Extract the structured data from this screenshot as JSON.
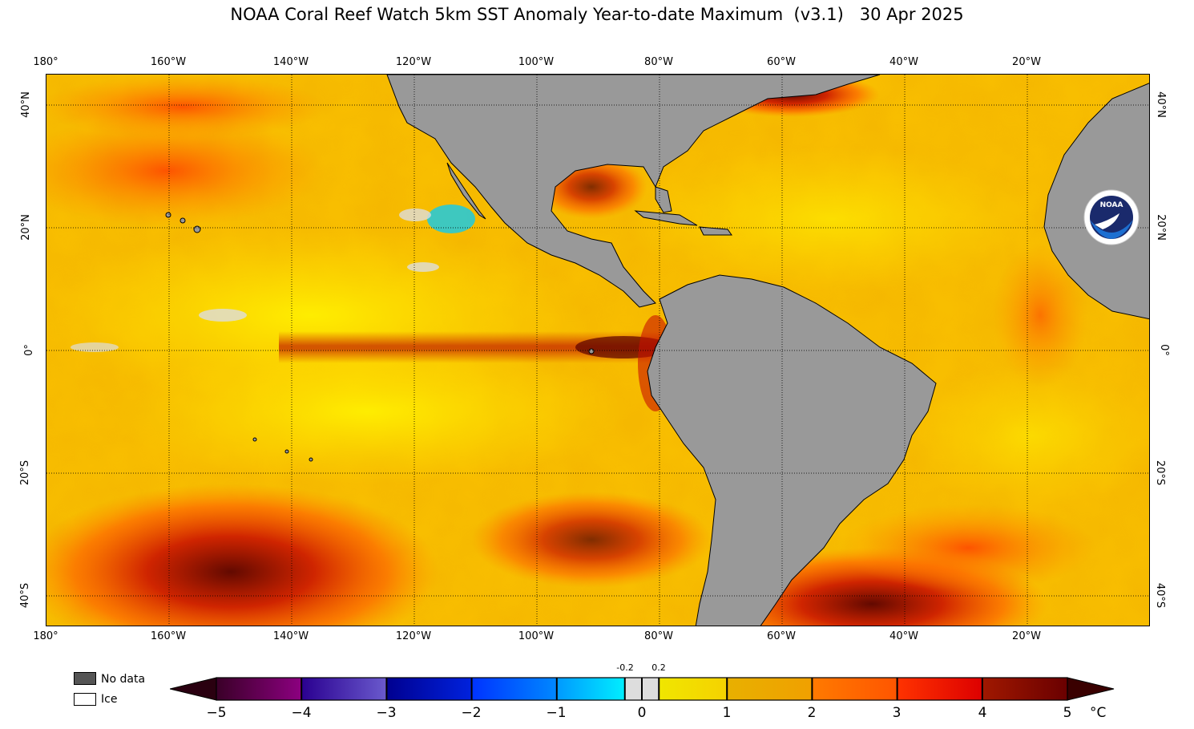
{
  "title": "NOAA Coral Reef Watch 5km SST Anomaly Year-to-date Maximum  (v3.1)   30 Apr 2025",
  "lon_labels": [
    "180°",
    "160°W",
    "140°W",
    "120°W",
    "100°W",
    "80°W",
    "60°W",
    "40°W",
    "20°W"
  ],
  "lat_labels": [
    "40°N",
    "20°N",
    "0°",
    "20°S",
    "40°S"
  ],
  "legend": {
    "no_data": "No data",
    "ice": "Ice",
    "no_data_color": "#555555",
    "ice_color": "#ffffff"
  },
  "colorbar": {
    "ticks": [
      "−5",
      "−4",
      "−3",
      "−2",
      "−1",
      "0",
      "1",
      "2",
      "3",
      "4",
      "5"
    ],
    "small_ticks": [
      "-0.2",
      "0.2"
    ],
    "unit": "°C",
    "segments": [
      {
        "from": "#3a0028",
        "to": "#8c0080"
      },
      {
        "from": "#2a0090",
        "to": "#6a5acd"
      },
      {
        "from": "#000090",
        "to": "#0022dd"
      },
      {
        "from": "#0033ff",
        "to": "#0088ff"
      },
      {
        "from": "#0099ff",
        "to": "#00eeff"
      },
      {
        "from": "#dddddd",
        "to": "#dddddd"
      },
      {
        "from": "#f0e600",
        "to": "#f5d200"
      },
      {
        "from": "#e8b000",
        "to": "#f0a000"
      },
      {
        "from": "#ff7a00",
        "to": "#ff5500"
      },
      {
        "from": "#ff3300",
        "to": "#dd0000"
      },
      {
        "from": "#a01800",
        "to": "#6a0000"
      }
    ]
  },
  "logo_text": "NOAA",
  "colors": {
    "land": "#999999",
    "ocean_base": "#f5b400"
  }
}
